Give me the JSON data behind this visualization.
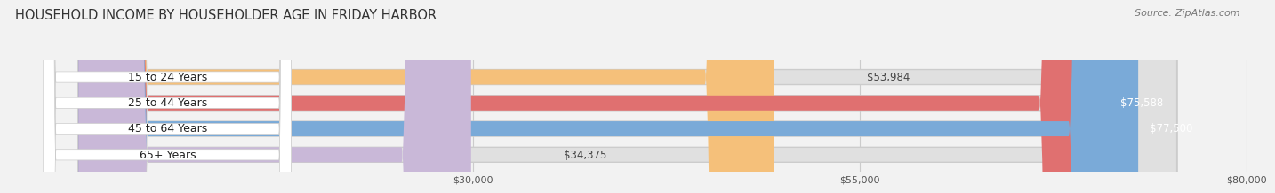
{
  "title": "HOUSEHOLD INCOME BY HOUSEHOLDER AGE IN FRIDAY HARBOR",
  "source": "Source: ZipAtlas.com",
  "categories": [
    "15 to 24 Years",
    "25 to 44 Years",
    "45 to 64 Years",
    "65+ Years"
  ],
  "values": [
    53984,
    75588,
    77500,
    34375
  ],
  "bar_colors": [
    "#F5C07A",
    "#E07070",
    "#7AAAD8",
    "#C9B8D8"
  ],
  "bar_labels": [
    "$53,984",
    "$75,588",
    "$77,500",
    "$34,375"
  ],
  "label_inside": [
    false,
    true,
    true,
    false
  ],
  "background_color": "#f2f2f2",
  "bar_bg_color": "#e0e0e0",
  "xlim": [
    0,
    80000
  ],
  "xticks": [
    30000,
    55000,
    80000
  ],
  "xtick_labels": [
    "$30,000",
    "$55,000",
    "$80,000"
  ],
  "title_fontsize": 10.5,
  "source_fontsize": 8,
  "bar_height": 0.58
}
